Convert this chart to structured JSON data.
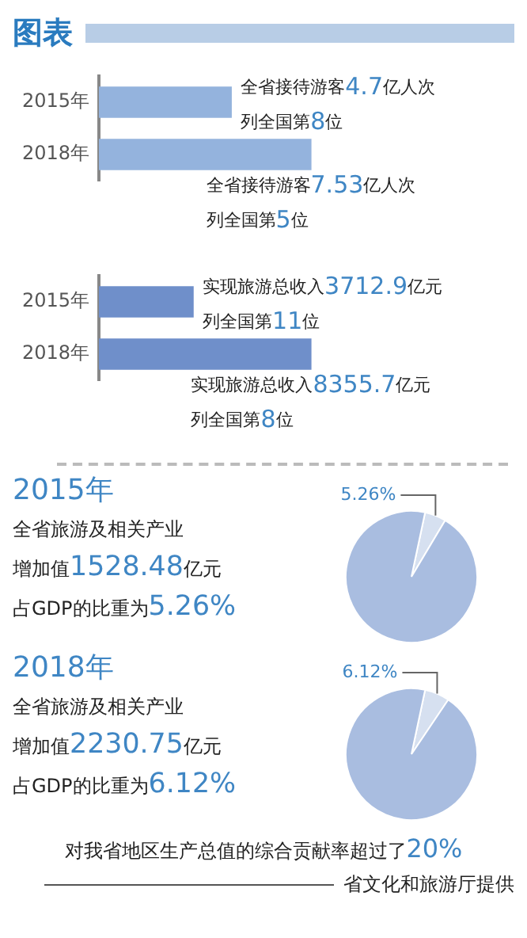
{
  "chart_data": [
    {
      "type": "bar",
      "orientation": "horizontal",
      "title": "图表",
      "categories": [
        "2015年",
        "2018年"
      ],
      "values": [
        4.7,
        7.53
      ],
      "color": "#94b3dd",
      "value_labels": [
        "全省接待游客4.7亿人次",
        "全省接待游客7.53亿人次"
      ],
      "annotations": [
        "列全国第8位",
        "列全国第5位"
      ]
    },
    {
      "type": "bar",
      "orientation": "horizontal",
      "categories": [
        "2015年",
        "2018年"
      ],
      "values": [
        3712.9,
        8355.7
      ],
      "color": "#6f8fca",
      "value_labels": [
        "实现旅游总收入3712.9亿元",
        "实现旅游总收入8355.7亿元"
      ],
      "annotations": [
        "列全国第11位",
        "列全国第8位"
      ]
    },
    {
      "type": "pie",
      "title": "2015年",
      "subtitle": "全省旅游及相关产业",
      "categories": [
        null,
        null
      ],
      "values": [
        5.26,
        94.74
      ],
      "colors": [
        "#d6e0f0",
        "#a9bde0"
      ],
      "value_labels": [
        "5.26%",
        null
      ],
      "annotations": [
        "增加值1528.48亿元",
        "占GDP的比重为5.26%"
      ]
    },
    {
      "type": "pie",
      "title": "2018年",
      "subtitle": "全省旅游及相关产业",
      "categories": [
        null,
        null
      ],
      "values": [
        6.12,
        93.88
      ],
      "colors": [
        "#d6e0f0",
        "#a9bde0"
      ],
      "value_labels": [
        "6.12%",
        null
      ],
      "annotations": [
        "增加值2230.75亿元",
        "占GDP的比重为6.12%",
        "对我省地区生产总值的综合贡献率超过了20%",
        "省文化和旅游厅提供"
      ]
    }
  ]
}
